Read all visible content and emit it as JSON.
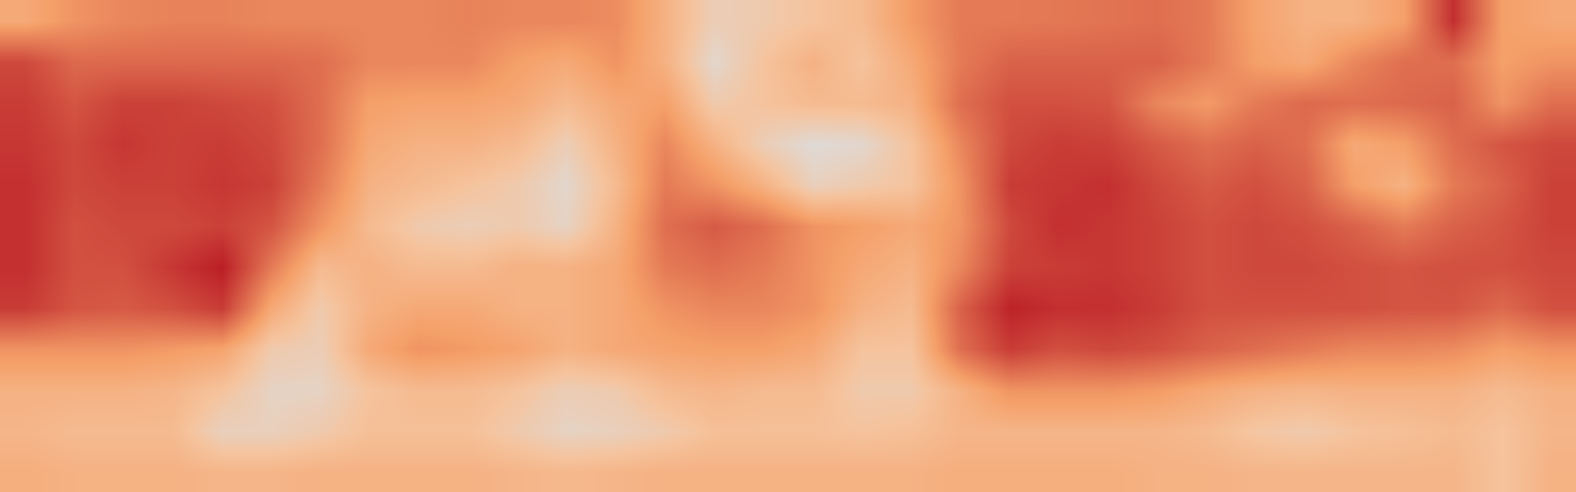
{
  "chart_data": {
    "type": "heatmap",
    "color": "Inferno",
    "tick_labels": false,
    "grid": false,
    "xlim": [
      -0.5,
      31.5
    ],
    "ylim": [
      11.5,
      -0.5
    ],
    "zlim": [
      0,
      1
    ],
    "cells": [
      [
        0.35,
        0.45,
        0.5,
        0.52,
        0.52,
        0.5,
        0.5,
        0.5,
        0.5,
        0.52,
        0.5,
        0.5,
        0.48,
        0.3,
        0.12,
        0.15,
        0.2,
        0.25,
        0.42,
        0.55,
        0.55,
        0.56,
        0.58,
        0.6,
        0.55,
        0.38,
        0.3,
        0.3,
        0.4,
        0.85,
        0.4,
        0.35
      ],
      [
        0.75,
        0.62,
        0.62,
        0.62,
        0.62,
        0.62,
        0.6,
        0.5,
        0.5,
        0.5,
        0.4,
        0.35,
        0.45,
        0.3,
        0.05,
        0.2,
        0.3,
        0.2,
        0.35,
        0.55,
        0.65,
        0.65,
        0.65,
        0.65,
        0.55,
        0.4,
        0.35,
        0.5,
        0.6,
        0.6,
        0.4,
        0.45
      ],
      [
        0.8,
        0.7,
        0.78,
        0.78,
        0.75,
        0.72,
        0.6,
        0.4,
        0.38,
        0.38,
        0.35,
        0.25,
        0.35,
        0.4,
        0.15,
        0.2,
        0.25,
        0.25,
        0.3,
        0.6,
        0.72,
        0.72,
        0.7,
        0.5,
        0.42,
        0.55,
        0.62,
        0.6,
        0.62,
        0.65,
        0.45,
        0.6
      ],
      [
        0.82,
        0.75,
        0.82,
        0.78,
        0.8,
        0.75,
        0.6,
        0.35,
        0.3,
        0.3,
        0.25,
        0.12,
        0.3,
        0.5,
        0.3,
        0.12,
        0.02,
        0.05,
        0.2,
        0.5,
        0.75,
        0.8,
        0.78,
        0.68,
        0.6,
        0.65,
        0.6,
        0.35,
        0.4,
        0.6,
        0.7,
        0.75
      ],
      [
        0.85,
        0.75,
        0.78,
        0.78,
        0.82,
        0.78,
        0.55,
        0.3,
        0.25,
        0.2,
        0.15,
        0.05,
        0.25,
        0.55,
        0.45,
        0.3,
        0.1,
        0.15,
        0.2,
        0.45,
        0.8,
        0.82,
        0.85,
        0.75,
        0.68,
        0.72,
        0.65,
        0.4,
        0.3,
        0.55,
        0.65,
        0.78
      ],
      [
        0.85,
        0.72,
        0.75,
        0.75,
        0.78,
        0.7,
        0.45,
        0.25,
        0.15,
        0.12,
        0.15,
        0.08,
        0.3,
        0.6,
        0.68,
        0.6,
        0.45,
        0.4,
        0.35,
        0.45,
        0.75,
        0.85,
        0.82,
        0.78,
        0.72,
        0.75,
        0.72,
        0.65,
        0.55,
        0.65,
        0.7,
        0.78
      ],
      [
        0.85,
        0.72,
        0.72,
        0.82,
        0.92,
        0.55,
        0.25,
        0.3,
        0.25,
        0.25,
        0.3,
        0.3,
        0.35,
        0.55,
        0.6,
        0.55,
        0.45,
        0.35,
        0.3,
        0.5,
        0.78,
        0.8,
        0.82,
        0.78,
        0.72,
        0.75,
        0.75,
        0.72,
        0.7,
        0.72,
        0.72,
        0.75
      ],
      [
        0.8,
        0.7,
        0.68,
        0.72,
        0.8,
        0.35,
        0.15,
        0.3,
        0.35,
        0.35,
        0.3,
        0.3,
        0.35,
        0.45,
        0.5,
        0.5,
        0.45,
        0.3,
        0.25,
        0.65,
        0.9,
        0.85,
        0.85,
        0.8,
        0.72,
        0.72,
        0.72,
        0.72,
        0.7,
        0.7,
        0.62,
        0.72
      ],
      [
        0.45,
        0.45,
        0.45,
        0.42,
        0.38,
        0.15,
        0.12,
        0.35,
        0.45,
        0.42,
        0.38,
        0.3,
        0.35,
        0.38,
        0.4,
        0.4,
        0.35,
        0.2,
        0.2,
        0.6,
        0.8,
        0.72,
        0.75,
        0.72,
        0.65,
        0.6,
        0.55,
        0.5,
        0.5,
        0.48,
        0.4,
        0.45
      ],
      [
        0.3,
        0.3,
        0.3,
        0.28,
        0.2,
        0.08,
        0.08,
        0.2,
        0.25,
        0.25,
        0.2,
        0.12,
        0.15,
        0.25,
        0.28,
        0.25,
        0.25,
        0.15,
        0.15,
        0.3,
        0.45,
        0.45,
        0.45,
        0.42,
        0.35,
        0.3,
        0.28,
        0.3,
        0.3,
        0.3,
        0.25,
        0.3
      ],
      [
        0.28,
        0.25,
        0.25,
        0.25,
        0.1,
        0.1,
        0.15,
        0.22,
        0.22,
        0.22,
        0.15,
        0.08,
        0.1,
        0.15,
        0.22,
        0.22,
        0.22,
        0.2,
        0.22,
        0.28,
        0.28,
        0.28,
        0.28,
        0.28,
        0.25,
        0.18,
        0.15,
        0.2,
        0.22,
        0.25,
        0.2,
        0.28
      ],
      [
        0.32,
        0.3,
        0.3,
        0.3,
        0.28,
        0.28,
        0.3,
        0.3,
        0.3,
        0.3,
        0.28,
        0.26,
        0.28,
        0.3,
        0.3,
        0.3,
        0.3,
        0.3,
        0.3,
        0.32,
        0.32,
        0.32,
        0.32,
        0.3,
        0.3,
        0.28,
        0.28,
        0.28,
        0.28,
        0.28,
        0.2,
        0.3
      ]
    ]
  }
}
